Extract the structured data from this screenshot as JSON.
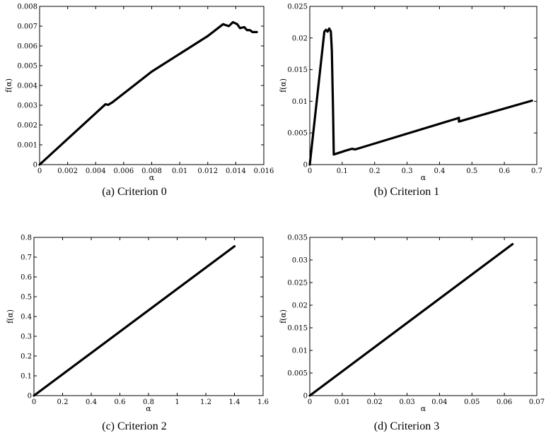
{
  "chart_data": [
    {
      "type": "line",
      "caption": "(a) Criterion 0",
      "xlabel": "α",
      "ylabel": "f(α)",
      "xlim": [
        0,
        0.016
      ],
      "ylim": [
        0,
        0.008
      ],
      "xticks": [
        0,
        0.002,
        0.004,
        0.006,
        0.008,
        0.01,
        0.012,
        0.014,
        0.016
      ],
      "xtick_labels": [
        "0",
        "0.002",
        "0.004",
        "0.006",
        "0.008",
        "0.01",
        "0.012",
        "0.014",
        "0.016"
      ],
      "yticks": [
        0,
        0.001,
        0.002,
        0.003,
        0.004,
        0.005,
        0.006,
        0.007,
        0.008
      ],
      "ytick_labels": [
        "0",
        "0.001",
        "0.002",
        "0.003",
        "0.004",
        "0.005",
        "0.006",
        "0.007",
        "0.008"
      ],
      "series": [
        {
          "x": [
            0,
            0.0047,
            0.0049,
            0.0052,
            0.008,
            0.012,
            0.0131,
            0.0135,
            0.0138,
            0.0141,
            0.0143,
            0.0146,
            0.0148,
            0.015,
            0.0152,
            0.0155
          ],
          "y": [
            0,
            0.00305,
            0.00302,
            0.00315,
            0.0047,
            0.0065,
            0.0071,
            0.007,
            0.0072,
            0.0071,
            0.0069,
            0.00695,
            0.0068,
            0.0068,
            0.0067,
            0.0067
          ]
        }
      ]
    },
    {
      "type": "line",
      "caption": "(b) Criterion 1",
      "xlabel": "α",
      "ylabel": "f(α)",
      "xlim": [
        0,
        0.7
      ],
      "ylim": [
        0,
        0.025
      ],
      "xticks": [
        0,
        0.1,
        0.2,
        0.3,
        0.4,
        0.5,
        0.6,
        0.7
      ],
      "xtick_labels": [
        "0",
        "0.1",
        "0.2",
        "0.3",
        "0.4",
        "0.5",
        "0.6",
        "0.7"
      ],
      "yticks": [
        0,
        0.005,
        0.01,
        0.015,
        0.02,
        0.025
      ],
      "ytick_labels": [
        "0",
        "0.005",
        "0.01",
        "0.015",
        "0.02",
        "0.025"
      ],
      "series": [
        {
          "x": [
            0,
            0.045,
            0.05,
            0.055,
            0.06,
            0.065,
            0.068,
            0.072,
            0.074,
            0.08,
            0.11,
            0.13,
            0.14,
            0.455,
            0.46,
            0.46,
            0.685
          ],
          "y": [
            0,
            0.021,
            0.0213,
            0.021,
            0.0215,
            0.021,
            0.018,
            0.008,
            0.0016,
            0.0017,
            0.0022,
            0.0025,
            0.0024,
            0.0073,
            0.0074,
            0.0068,
            0.0101
          ]
        }
      ]
    },
    {
      "type": "line",
      "caption": "(c) Criterion 2",
      "xlabel": "α",
      "ylabel": "f(α)",
      "xlim": [
        0,
        1.6
      ],
      "ylim": [
        0,
        0.8
      ],
      "xticks": [
        0,
        0.2,
        0.4,
        0.6,
        0.8,
        1,
        1.2,
        1.4,
        1.6
      ],
      "xtick_labels": [
        "0",
        "0.2",
        "0.4",
        "0.6",
        "0.8",
        "1",
        "1.2",
        "1.4",
        "1.6"
      ],
      "yticks": [
        0,
        0.1,
        0.2,
        0.3,
        0.4,
        0.5,
        0.6,
        0.7,
        0.8
      ],
      "ytick_labels": [
        "0",
        "0.1",
        "0.2",
        "0.3",
        "0.4",
        "0.5",
        "0.6",
        "0.7",
        "0.8"
      ],
      "series": [
        {
          "x": [
            0,
            1.4
          ],
          "y": [
            0,
            0.755
          ]
        }
      ]
    },
    {
      "type": "line",
      "caption": "(d) Criterion 3",
      "xlabel": "α",
      "ylabel": "f(α)",
      "xlim": [
        0,
        0.07
      ],
      "ylim": [
        0,
        0.035
      ],
      "xticks": [
        0,
        0.01,
        0.02,
        0.03,
        0.04,
        0.05,
        0.06,
        0.07
      ],
      "xtick_labels": [
        "0",
        "0.01",
        "0.02",
        "0.03",
        "0.04",
        "0.05",
        "0.06",
        "0.07"
      ],
      "yticks": [
        0,
        0.005,
        0.01,
        0.015,
        0.02,
        0.025,
        0.03,
        0.035
      ],
      "ytick_labels": [
        "0",
        "0.005",
        "0.01",
        "0.015",
        "0.02",
        "0.025",
        "0.03",
        "0.035"
      ],
      "series": [
        {
          "x": [
            0,
            0.0625
          ],
          "y": [
            0,
            0.0335
          ]
        }
      ]
    }
  ]
}
